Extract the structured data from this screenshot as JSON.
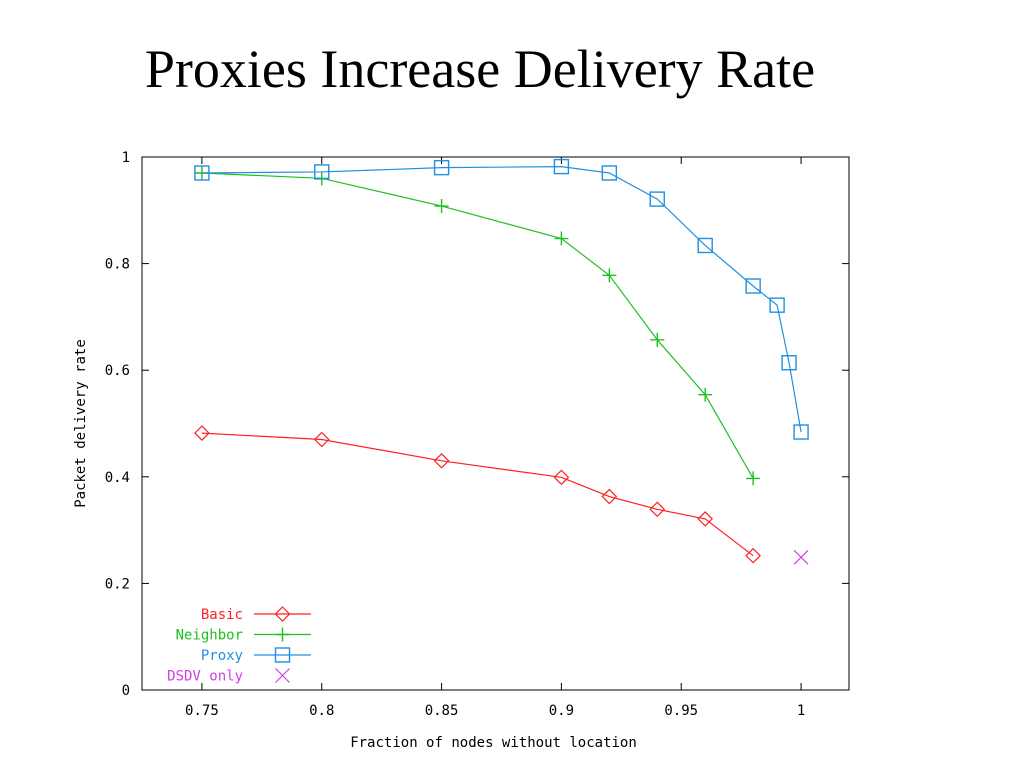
{
  "slide": {
    "title": "Proxies Increase Delivery Rate"
  },
  "chart_data": {
    "type": "line",
    "title": "",
    "xlabel": "Fraction of nodes without location",
    "ylabel": "Packet delivery rate",
    "xlim": [
      0.725,
      1.02
    ],
    "ylim": [
      0,
      1
    ],
    "xticks": [
      0.75,
      0.8,
      0.85,
      0.9,
      0.95,
      1
    ],
    "xtick_labels": [
      "0.75",
      "0.8",
      "0.85",
      "0.9",
      "0.95",
      "1"
    ],
    "yticks": [
      0,
      0.2,
      0.4,
      0.6,
      0.8,
      1
    ],
    "ytick_labels": [
      "0",
      "0.2",
      "0.4",
      "0.6",
      "0.8",
      "1"
    ],
    "grid": false,
    "legend_position": "bottom-left",
    "series": [
      {
        "name": "Basic",
        "color": "#ff2020",
        "marker": "diamond",
        "line": true,
        "points": [
          [
            0.75,
            0.482
          ],
          [
            0.8,
            0.47
          ],
          [
            0.85,
            0.43
          ],
          [
            0.9,
            0.399
          ],
          [
            0.92,
            0.363
          ],
          [
            0.94,
            0.339
          ],
          [
            0.96,
            0.321
          ],
          [
            0.98,
            0.252
          ]
        ]
      },
      {
        "name": "Neighbor",
        "color": "#20c020",
        "marker": "plus",
        "line": true,
        "points": [
          [
            0.75,
            0.97
          ],
          [
            0.8,
            0.96
          ],
          [
            0.85,
            0.908
          ],
          [
            0.9,
            0.847
          ],
          [
            0.92,
            0.778
          ],
          [
            0.94,
            0.657
          ],
          [
            0.96,
            0.554
          ],
          [
            0.98,
            0.397
          ]
        ]
      },
      {
        "name": "Proxy",
        "color": "#2090e0",
        "marker": "square",
        "line": true,
        "points": [
          [
            0.75,
            0.97
          ],
          [
            0.8,
            0.972
          ],
          [
            0.85,
            0.98
          ],
          [
            0.9,
            0.982
          ],
          [
            0.92,
            0.97
          ],
          [
            0.94,
            0.921
          ],
          [
            0.96,
            0.834
          ],
          [
            0.98,
            0.758
          ],
          [
            0.99,
            0.722
          ],
          [
            0.995,
            0.614
          ],
          [
            1.0,
            0.484
          ]
        ]
      },
      {
        "name": "DSDV only",
        "color": "#d040e0",
        "marker": "x",
        "line": false,
        "points": [
          [
            1.0,
            0.249
          ]
        ]
      }
    ]
  }
}
